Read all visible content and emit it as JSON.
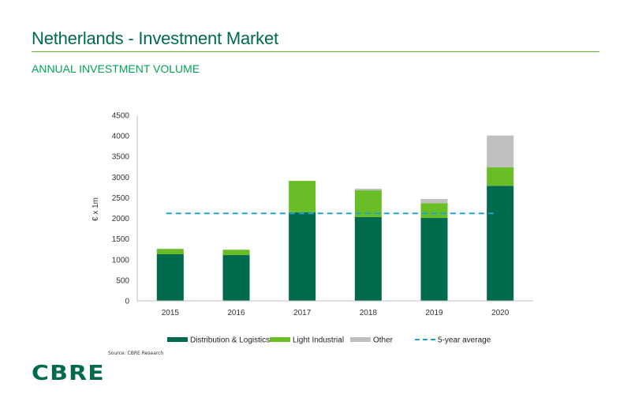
{
  "header": {
    "title": "Netherlands - Investment Market",
    "subtitle": "ANNUAL INVESTMENT VOLUME"
  },
  "footer": {
    "source": "Source: CBRE Research",
    "logo": "CBRE"
  },
  "chart_data": {
    "type": "bar",
    "stacked": true,
    "title": "ANNUAL INVESTMENT VOLUME",
    "xlabel": "",
    "ylabel": "€ x 1m",
    "ylim": [
      0,
      4500
    ],
    "yticks": [
      0,
      500,
      1000,
      1500,
      2000,
      2500,
      3000,
      3500,
      4000,
      4500
    ],
    "categories": [
      "2015",
      "2016",
      "2017",
      "2018",
      "2019",
      "2020"
    ],
    "series": [
      {
        "name": "Distribution & Logistics",
        "color": "#006a4d",
        "values": [
          1130,
          1110,
          2150,
          2030,
          2010,
          2790
        ]
      },
      {
        "name": "Light Industrial",
        "color": "#69be28",
        "values": [
          130,
          130,
          760,
          650,
          360,
          450
        ]
      },
      {
        "name": "Other",
        "color": "#bfbfbf",
        "values": [
          0,
          0,
          0,
          40,
          100,
          770
        ]
      }
    ],
    "reference_line": {
      "name": "5-year average",
      "value": 2120,
      "color": "#1fa3c9",
      "style": "dashed"
    },
    "legend_position": "bottom",
    "grid": false
  }
}
